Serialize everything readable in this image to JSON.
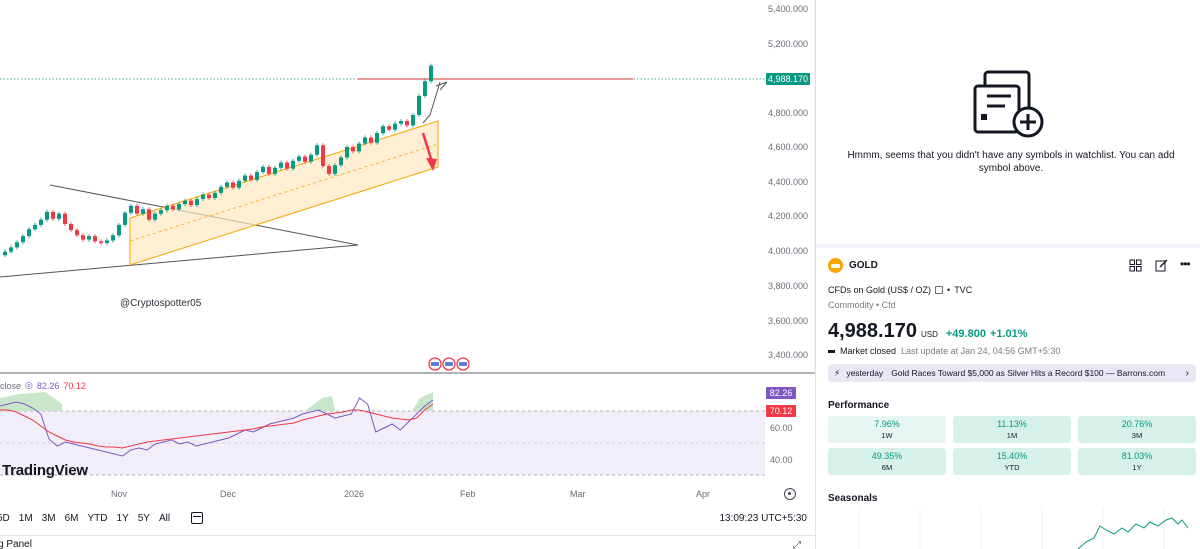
{
  "chart": {
    "price_axis_labels": [
      "5,400.000",
      "5,200.000",
      "4,800.000",
      "4,600.000",
      "4,400.000",
      "4,200.000",
      "4,000.000",
      "3,800.000",
      "3,600.000",
      "3,400.000"
    ],
    "current_price_tag": "4,988.170",
    "watermark_text": "@Cryptospotter05",
    "rsi": {
      "legend_prefix": "close",
      "value_a": "82.26",
      "value_b": "70.12",
      "tag_a": "82.26",
      "tag_b": "70.12",
      "levels": [
        "60.00",
        "40.00"
      ]
    },
    "logo_text": "TradingView",
    "time_labels": [
      "Nov",
      "Dec",
      "2026",
      "Feb",
      "Mar",
      "Apr"
    ],
    "ranges": [
      "5D",
      "1M",
      "3M",
      "6M",
      "YTD",
      "1Y",
      "5Y",
      "All"
    ],
    "clock": "13:09:23 UTC+5:30",
    "bottom_panel_label": "g Panel",
    "colors": {
      "up": "#089981",
      "down": "#f23645",
      "channel": "#f7a600",
      "rsi": "#7e57c2"
    }
  },
  "sidebar": {
    "watchlist_message": "Hmmm, seems that you didn't have any symbols in watchlist. You can add symbol above.",
    "symbol": {
      "name": "GOLD",
      "description": "CFDs on Gold (US$ / OZ)",
      "exchange": "TVC",
      "type": "Commodity • Cfd",
      "price": "4,988.170",
      "currency": "USD",
      "change": "+49.800",
      "change_pct": "+1.01%",
      "status": "Market closed",
      "last_update": "Last update at Jan 24, 04:56 GMT+5:30"
    },
    "news": {
      "when": "yesterday",
      "headline": "Gold Races Toward $5,000 as Silver Hits a Record $100 — Barrons.com"
    },
    "performance": {
      "title": "Performance",
      "cells": [
        {
          "value": "7.96%",
          "label": "1W"
        },
        {
          "value": "11.13%",
          "label": "1M"
        },
        {
          "value": "20.76%",
          "label": "3M"
        },
        {
          "value": "49.35%",
          "label": "6M"
        },
        {
          "value": "15.40%",
          "label": "YTD"
        },
        {
          "value": "81.03%",
          "label": "1Y"
        }
      ]
    },
    "seasonals_title": "Seasonals"
  }
}
